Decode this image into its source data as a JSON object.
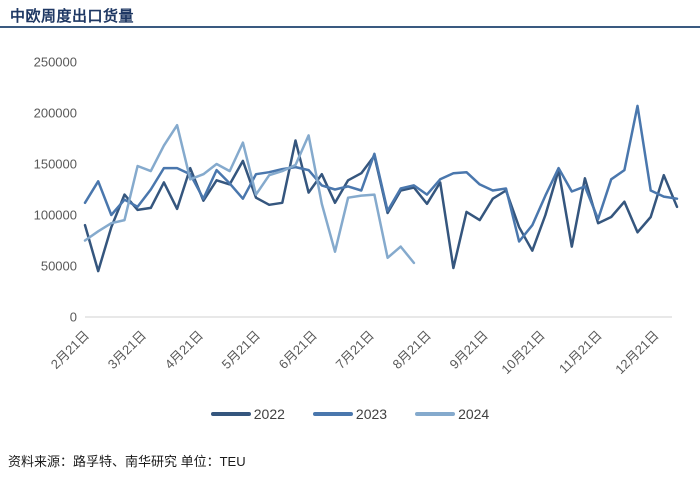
{
  "title": "中欧周度出口货量",
  "source_note": "资料来源：路孚特、南华研究 单位：TEU",
  "colors": {
    "title_text": "#1f3864",
    "title_rule": "#3a5a80",
    "axis_text": "#595959",
    "axis_line": "#d9d9d9",
    "legend_text": "#404040",
    "series_2022": "#35567e",
    "series_2023": "#4a77ad",
    "series_2024": "#85aacd"
  },
  "chart_data": {
    "type": "line",
    "title": "中欧周度出口货量",
    "xlabel": "",
    "ylabel": "",
    "unit": "TEU",
    "ylim": [
      0,
      250000
    ],
    "yticks": [
      0,
      50000,
      100000,
      150000,
      200000,
      250000
    ],
    "x_tick_labels": [
      "2月21日",
      "3月21日",
      "4月21日",
      "5月21日",
      "6月21日",
      "7月21日",
      "8月21日",
      "9月21日",
      "10月21日",
      "11月21日",
      "12月21日"
    ],
    "x_interval": "weekly",
    "grid": false,
    "legend_position": "bottom",
    "series": [
      {
        "name": "2022",
        "color": "#35567e",
        "values": [
          90000,
          45000,
          88000,
          120000,
          105000,
          107000,
          132000,
          106000,
          146000,
          114000,
          134000,
          130000,
          153000,
          117000,
          110000,
          112000,
          173000,
          122000,
          140000,
          112000,
          134000,
          141000,
          158000,
          102000,
          124000,
          127000,
          111000,
          132000,
          48000,
          103000,
          95000,
          116000,
          124000,
          88000,
          65000,
          100000,
          144000,
          69000,
          136000,
          92000,
          98000,
          113000,
          83000,
          98000,
          139000,
          108000
        ]
      },
      {
        "name": "2023",
        "color": "#4a77ad",
        "values": [
          112000,
          133000,
          100000,
          115000,
          108000,
          125000,
          146000,
          146000,
          140000,
          116000,
          144000,
          131000,
          116000,
          140000,
          142000,
          145000,
          147000,
          144000,
          129000,
          125000,
          128000,
          124000,
          160000,
          104000,
          126000,
          129000,
          120000,
          135000,
          141000,
          142000,
          130000,
          124000,
          126000,
          74000,
          90000,
          119000,
          146000,
          123000,
          128000,
          96000,
          135000,
          144000,
          207000,
          124000,
          118000,
          116000
        ]
      },
      {
        "name": "2024",
        "color": "#85aacd",
        "values": [
          75000,
          84000,
          92000,
          95000,
          148000,
          143000,
          168000,
          188000,
          135000,
          140000,
          150000,
          143000,
          171000,
          120000,
          139000,
          143000,
          149000,
          178000,
          111000,
          64000,
          117000,
          119000,
          120000,
          58000,
          69000,
          53000
        ]
      }
    ]
  }
}
